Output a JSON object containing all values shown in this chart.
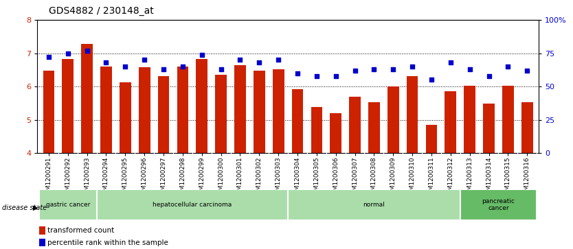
{
  "title": "GDS4882 / 230148_at",
  "categories": [
    "GSM1200291",
    "GSM1200292",
    "GSM1200293",
    "GSM1200294",
    "GSM1200295",
    "GSM1200296",
    "GSM1200297",
    "GSM1200298",
    "GSM1200299",
    "GSM1200300",
    "GSM1200301",
    "GSM1200302",
    "GSM1200303",
    "GSM1200304",
    "GSM1200305",
    "GSM1200306",
    "GSM1200307",
    "GSM1200308",
    "GSM1200309",
    "GSM1200310",
    "GSM1200311",
    "GSM1200312",
    "GSM1200313",
    "GSM1200314",
    "GSM1200315",
    "GSM1200316"
  ],
  "bar_values": [
    6.48,
    6.82,
    7.27,
    6.6,
    6.13,
    6.58,
    6.32,
    6.6,
    6.82,
    6.35,
    6.65,
    6.48,
    6.52,
    5.92,
    5.38,
    5.19,
    5.7,
    5.52,
    6.0,
    6.32,
    4.85,
    5.85,
    6.02,
    5.48,
    6.02,
    5.52
  ],
  "dot_values_pct": [
    72,
    75,
    77,
    68,
    65,
    70,
    63,
    65,
    74,
    63,
    70,
    68,
    70,
    60,
    58,
    58,
    62,
    63,
    63,
    65,
    55,
    68,
    63,
    58,
    65,
    62
  ],
  "bar_color": "#cc2200",
  "dot_color": "#0000cc",
  "ylim": [
    4,
    8
  ],
  "ylim_right": [
    0,
    100
  ],
  "yticks_left": [
    4,
    5,
    6,
    7,
    8
  ],
  "yticks_right": [
    0,
    25,
    50,
    75,
    100
  ],
  "ytick_right_labels": [
    "0",
    "25",
    "50",
    "75",
    "100%"
  ],
  "disease_groups": [
    {
      "label": "gastric cancer",
      "start": 0,
      "end": 2,
      "color": "#aaddaa"
    },
    {
      "label": "hepatocellular carcinoma",
      "start": 3,
      "end": 12,
      "color": "#aaddaa"
    },
    {
      "label": "normal",
      "start": 13,
      "end": 21,
      "color": "#aaddaa"
    },
    {
      "label": "pancreatic\ncancer",
      "start": 22,
      "end": 25,
      "color": "#66bb66"
    }
  ],
  "legend_red_label": "transformed count",
  "legend_blue_label": "percentile rank within the sample",
  "title_fontsize": 10,
  "axis_fontsize": 8,
  "tick_fontsize": 8,
  "xtick_fontsize": 6.5,
  "bg_color": "#ffffff"
}
